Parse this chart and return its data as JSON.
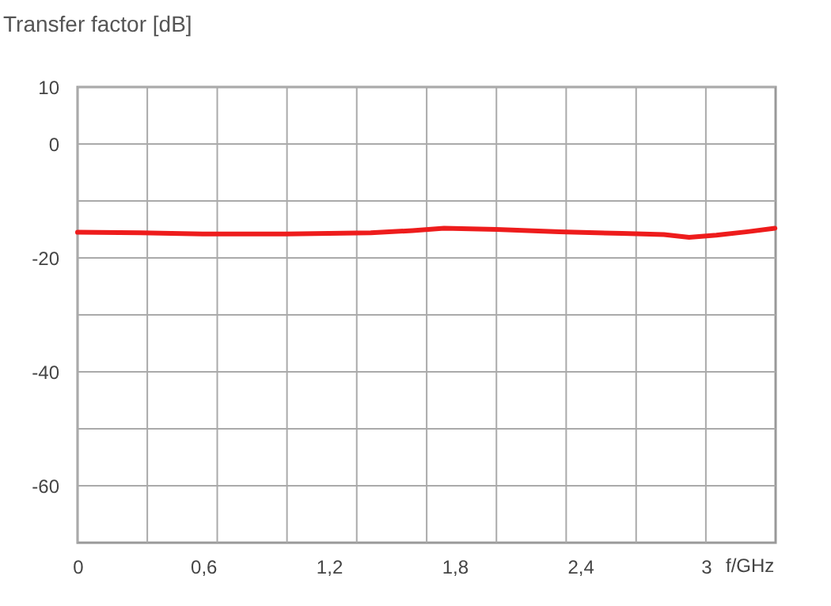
{
  "chart_data": {
    "type": "line",
    "title": "Transfer factor [dB]",
    "xlabel": "f/GHz",
    "x": [
      0,
      0.3,
      0.6,
      1.0,
      1.4,
      1.6,
      1.75,
      2.0,
      2.3,
      2.6,
      2.8,
      2.92,
      3.05,
      3.2,
      3.33
    ],
    "series": [
      {
        "color": "#ee1c1c",
        "values": [
          -15.5,
          -15.6,
          -15.8,
          -15.8,
          -15.6,
          -15.2,
          -14.8,
          -15.0,
          -15.4,
          -15.7,
          -15.9,
          -16.4,
          -16.0,
          -15.4,
          -14.8
        ]
      }
    ],
    "xlim": [
      0,
      3.333
    ],
    "xticks": [
      0,
      {
        "value": 0.333,
        "label": null
      },
      {
        "value": 0.6,
        "label": "0,6"
      },
      {
        "value": 0.667,
        "label": null
      },
      {
        "value": 1,
        "label": null
      },
      {
        "value": 1.2,
        "label": "1,2"
      },
      {
        "value": 1.333,
        "label": null
      },
      {
        "value": 1.667,
        "label": null
      },
      {
        "value": 1.8,
        "label": "1,8"
      },
      {
        "value": 2,
        "label": null
      },
      {
        "value": 2.333,
        "label": null
      },
      {
        "value": 2.4,
        "label": "2,4"
      },
      {
        "value": 2.667,
        "label": null
      },
      3
    ],
    "ylim": [
      -70,
      10
    ],
    "yticks": [
      10,
      0,
      {
        "value": -10,
        "label": null
      },
      -20,
      {
        "value": -30,
        "label": null
      },
      -40,
      {
        "value": -50,
        "label": null
      },
      -60
    ],
    "grid": true,
    "line_style": "solid",
    "marker": "none"
  }
}
